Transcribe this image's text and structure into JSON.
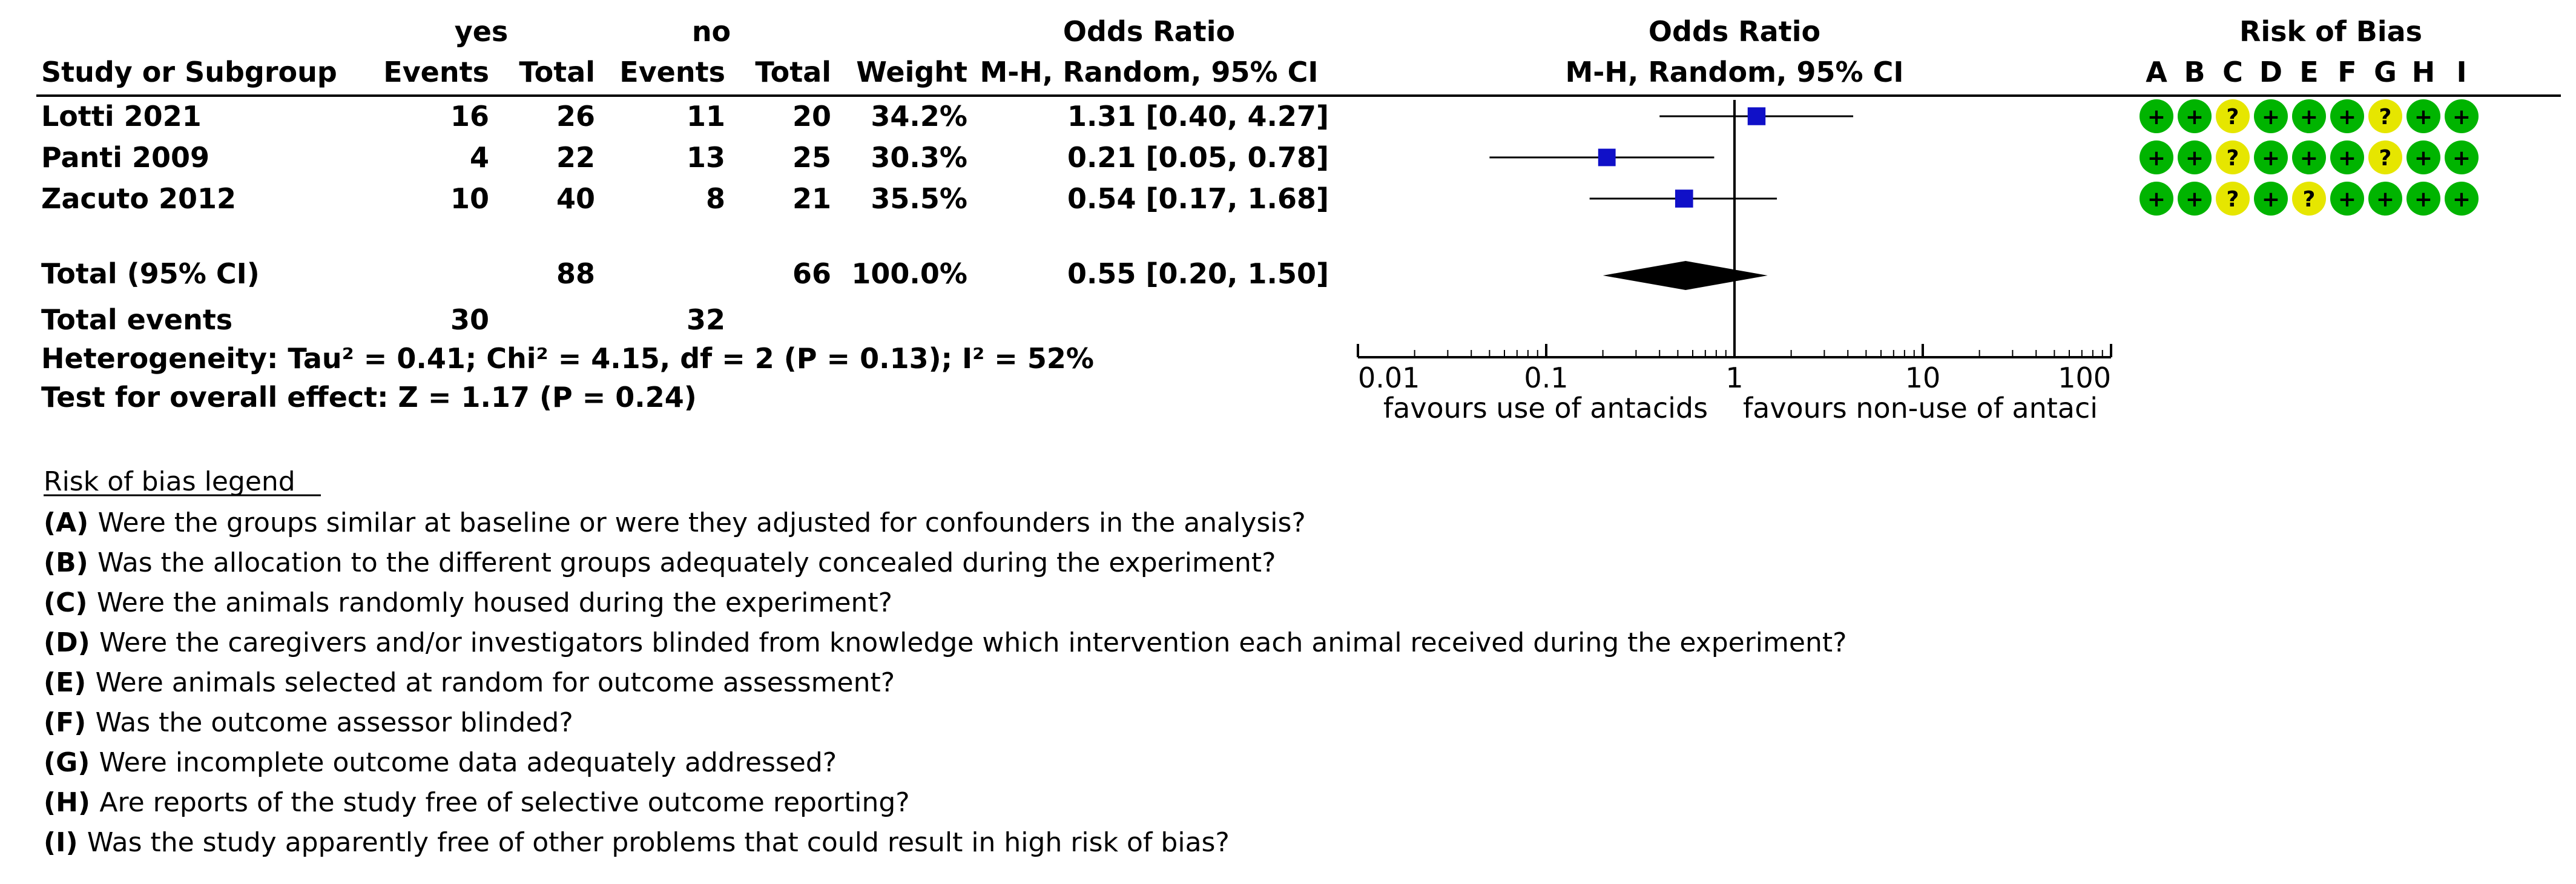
{
  "headers": {
    "group1": "yes",
    "group2": "no",
    "study_or_subgroup": "Study or Subgroup",
    "events": "Events",
    "total": "Total",
    "weight": "Weight",
    "or_title": "Odds Ratio",
    "or_method": "M-H, Random, 95% CI",
    "plot_title": "Odds Ratio",
    "plot_method": "M-H, Random, 95% CI",
    "rob_title": "Risk of Bias",
    "rob_letters": [
      "A",
      "B",
      "C",
      "D",
      "E",
      "F",
      "G",
      "H",
      "I"
    ]
  },
  "studies": [
    {
      "name": "Lotti 2021",
      "e1": "16",
      "t1": "26",
      "e2": "11",
      "t2": "20",
      "weight": "34.2%",
      "ci_text": "1.31 [0.40, 4.27]",
      "or": 1.31,
      "lo": 0.4,
      "hi": 4.27,
      "rob": [
        "+",
        "+",
        "?",
        "+",
        "+",
        "+",
        "?",
        "+",
        "+"
      ]
    },
    {
      "name": "Panti 2009",
      "e1": "4",
      "t1": "22",
      "e2": "13",
      "t2": "25",
      "weight": "30.3%",
      "ci_text": "0.21 [0.05, 0.78]",
      "or": 0.21,
      "lo": 0.05,
      "hi": 0.78,
      "rob": [
        "+",
        "+",
        "?",
        "+",
        "+",
        "+",
        "?",
        "+",
        "+"
      ]
    },
    {
      "name": "Zacuto 2012",
      "e1": "10",
      "t1": "40",
      "e2": "8",
      "t2": "21",
      "weight": "35.5%",
      "ci_text": "0.54 [0.17, 1.68]",
      "or": 0.54,
      "lo": 0.17,
      "hi": 1.68,
      "rob": [
        "+",
        "+",
        "?",
        "+",
        "?",
        "+",
        "+",
        "+",
        "+"
      ]
    }
  ],
  "total": {
    "label": "Total (95% CI)",
    "t1": "88",
    "t2": "66",
    "weight": "100.0%",
    "ci_text": "0.55 [0.20, 1.50]",
    "or": 0.55,
    "lo": 0.2,
    "hi": 1.5
  },
  "total_events": {
    "label": "Total events",
    "e1": "30",
    "e2": "32"
  },
  "heterogeneity": "Heterogeneity: Tau² = 0.41; Chi² = 4.15, df = 2 (P = 0.13); I² = 52%",
  "overall_effect": "Test for overall effect: Z = 1.17 (P = 0.24)",
  "chart_data": {
    "type": "forest",
    "scale": "log",
    "x_ticks": [
      0.01,
      0.1,
      1,
      10,
      100
    ],
    "x_tick_labels": [
      "0.01",
      "0.1",
      "1",
      "10",
      "100"
    ],
    "left_label": "favours use of antacids",
    "right_label": "favours non-use of antaci",
    "reference_line": 1
  },
  "legend": {
    "title": "Risk of bias legend",
    "items": [
      {
        "key": "(A)",
        "text": "Were the groups similar at baseline or were they adjusted for confounders in the analysis?"
      },
      {
        "key": "(B)",
        "text": "Was the allocation to the different groups adequately concealed during the experiment?"
      },
      {
        "key": "(C)",
        "text": "Were the animals randomly housed during the experiment?"
      },
      {
        "key": "(D)",
        "text": "Were the caregivers and/or investigators blinded from knowledge which intervention each animal received during the experiment?"
      },
      {
        "key": "(E)",
        "text": "Were animals selected at random for outcome assessment?"
      },
      {
        "key": "(F)",
        "text": "Was the outcome assessor blinded?"
      },
      {
        "key": "(G)",
        "text": "Were incomplete outcome data adequately addressed?"
      },
      {
        "key": "(H)",
        "text": "Are reports of the study free of selective outcome reporting?"
      },
      {
        "key": "(I)",
        "text": "Was the study apparently free of other problems that could result in high risk of bias?"
      }
    ]
  },
  "colors": {
    "low_risk": "#00b400",
    "unclear_risk": "#e6e600",
    "square": "#1010c8",
    "diamond": "#000000"
  }
}
